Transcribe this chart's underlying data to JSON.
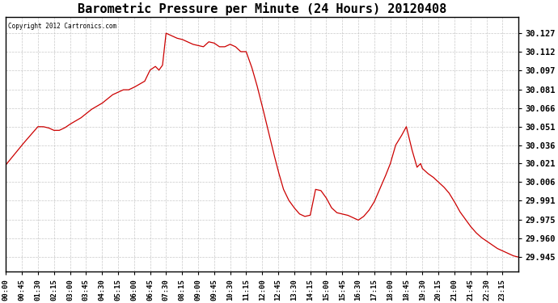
{
  "title": "Barometric Pressure per Minute (24 Hours) 20120408",
  "copyright_text": "Copyright 2012 Cartronics.com",
  "line_color": "#cc0000",
  "background_color": "#ffffff",
  "plot_bg_color": "#ffffff",
  "grid_color": "#bbbbbb",
  "title_fontsize": 11,
  "yticks": [
    29.945,
    29.96,
    29.975,
    29.991,
    30.006,
    30.021,
    30.036,
    30.051,
    30.066,
    30.081,
    30.097,
    30.112,
    30.127
  ],
  "ylim": [
    29.933,
    30.14
  ],
  "xtick_labels": [
    "00:00",
    "00:45",
    "01:30",
    "02:15",
    "03:00",
    "03:45",
    "04:30",
    "05:15",
    "06:00",
    "06:45",
    "07:30",
    "08:15",
    "09:00",
    "09:45",
    "10:30",
    "11:15",
    "12:00",
    "12:45",
    "13:30",
    "14:15",
    "15:00",
    "15:45",
    "16:30",
    "17:15",
    "18:00",
    "18:45",
    "19:30",
    "20:15",
    "21:00",
    "21:45",
    "22:30",
    "23:15"
  ]
}
